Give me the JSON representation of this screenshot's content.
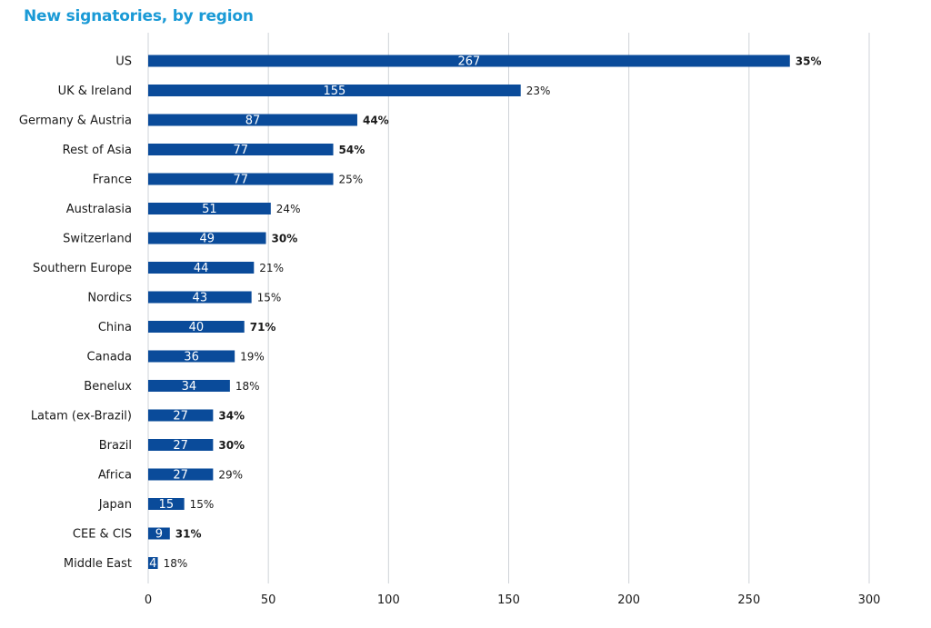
{
  "chart_data": {
    "type": "bar",
    "orientation": "horizontal",
    "title": "New signatories, by region",
    "categories": [
      "US",
      "UK & Ireland",
      "Germany & Austria",
      "Rest of Asia",
      "France",
      "Australasia",
      "Switzerland",
      "Southern Europe",
      "Nordics",
      "China",
      "Canada",
      "Benelux",
      "Latam (ex-Brazil)",
      "Brazil",
      "Africa",
      "Japan",
      "CEE & CIS",
      "Middle East"
    ],
    "values": [
      267,
      155,
      87,
      77,
      77,
      51,
      49,
      44,
      43,
      40,
      36,
      34,
      27,
      27,
      27,
      15,
      9,
      4
    ],
    "percent_labels": [
      "35%",
      "23%",
      "44%",
      "54%",
      "25%",
      "24%",
      "30%",
      "21%",
      "15%",
      "71%",
      "19%",
      "18%",
      "34%",
      "30%",
      "29%",
      "15%",
      "31%",
      "18%"
    ],
    "percent_highlighted": [
      true,
      false,
      true,
      true,
      false,
      false,
      true,
      false,
      false,
      true,
      false,
      false,
      true,
      true,
      false,
      false,
      true,
      false
    ],
    "xlim": [
      0,
      300
    ],
    "xticks": [
      "0",
      "50",
      "100",
      "150",
      "200",
      "250",
      "300"
    ],
    "grid": true,
    "colors": {
      "bar": "#0a4b9a",
      "title": "#1a9ad6",
      "highlight": "#f2a21b",
      "text": "#1a1a1a"
    }
  }
}
